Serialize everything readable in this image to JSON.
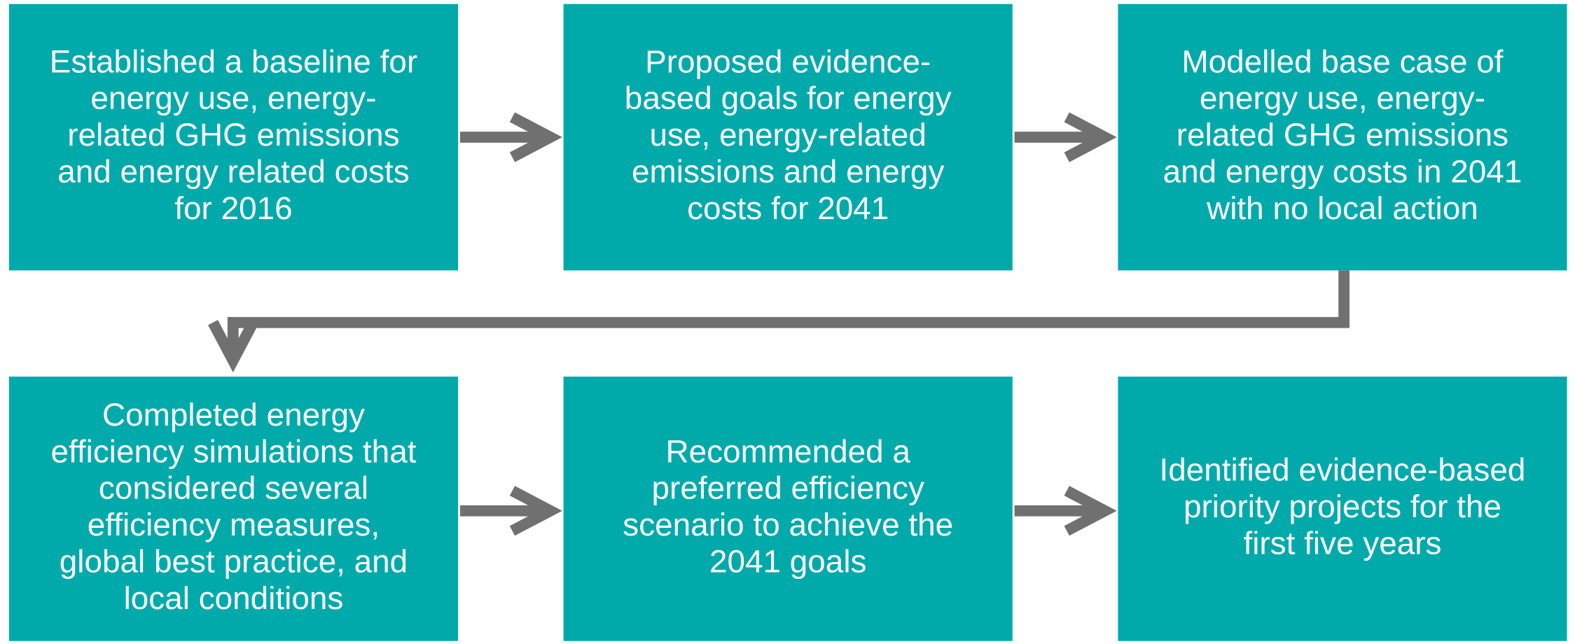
{
  "nodes": [
    {
      "lines": [
        "Established a baseline for",
        "energy use, energy-",
        "related GHG emissions",
        "and energy related costs",
        "for 2016"
      ]
    },
    {
      "lines": [
        "Proposed evidence-",
        "based goals for energy",
        "use, energy-related",
        "emissions and energy",
        "costs for 2041"
      ]
    },
    {
      "lines": [
        "Modelled base case of",
        "energy use, energy-",
        "related GHG emissions",
        "and energy costs in 2041",
        "with no local action"
      ]
    },
    {
      "lines": [
        "Completed energy",
        "efficiency simulations that",
        "considered several",
        "efficiency measures,",
        "global best practice, and",
        "local conditions"
      ]
    },
    {
      "lines": [
        "Recommended a",
        "preferred efficiency",
        "scenario to achieve the",
        "2041 goals"
      ]
    },
    {
      "lines": [
        "Identified evidence-based",
        "priority projects for the",
        "first five years"
      ]
    }
  ]
}
